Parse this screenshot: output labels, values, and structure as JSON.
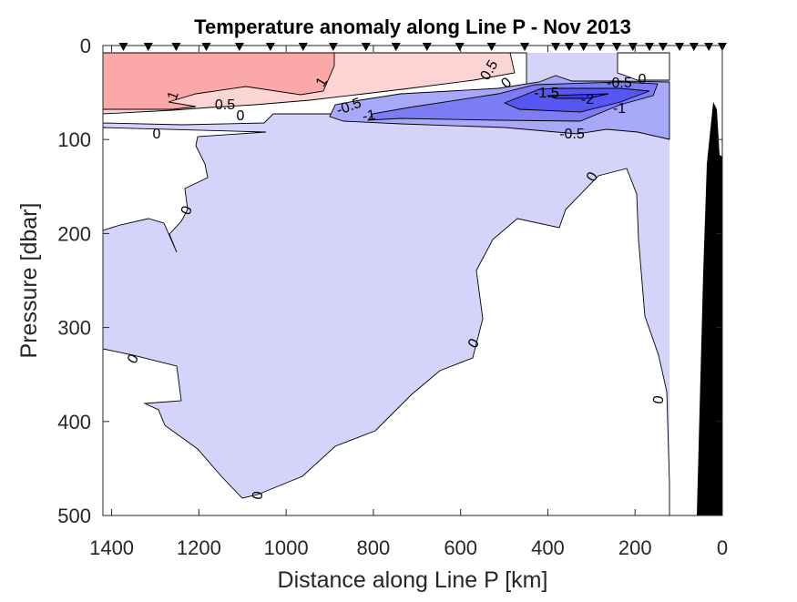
{
  "chart_data": {
    "type": "contour",
    "title": "Temperature anomaly along Line P - Nov 2013",
    "xlabel": "Distance along Line P [km]",
    "ylabel": "Pressure [dbar]",
    "xlim": [
      1420,
      0
    ],
    "ylim": [
      0,
      500
    ],
    "x_reversed": true,
    "y_reversed": true,
    "xticks": [
      "1400",
      "1200",
      "1000",
      "800",
      "600",
      "400",
      "200",
      "0"
    ],
    "xtick_values": [
      1400,
      1200,
      1000,
      800,
      600,
      400,
      200,
      0
    ],
    "yticks": [
      "0",
      "100",
      "200",
      "300",
      "400",
      "500"
    ],
    "ytick_values": [
      0,
      100,
      200,
      300,
      400,
      500
    ],
    "contour_levels": [
      -2,
      -1.5,
      -1,
      -0.5,
      0,
      0.5,
      1
    ],
    "level_colors": {
      "gt_1": "#fba8a8",
      "0.5_to_1": "#fdd4d4",
      "0_to_0.5": "#ffffff",
      "-0.5_to_0": "#d4d4fa",
      "-1_to_-0.5": "#a8a8f8",
      "-1.5_to_-1": "#7c7cf4",
      "-2_to_-1.5": "#5656f2",
      "lt_-2": "#3c3cf0"
    },
    "bathymetry_color": "#000000",
    "station_km": [
      1373,
      1316,
      1252,
      1183,
      1107,
      1036,
      961,
      892,
      817,
      748,
      677,
      602,
      529,
      453,
      382,
      351,
      318,
      280,
      242,
      205,
      167,
      136,
      98,
      65,
      31,
      0
    ],
    "contour_labels": [
      "1",
      "0.5",
      "0",
      "1",
      "0",
      "0.5",
      "0",
      "-0.5",
      "-1",
      "-1.5",
      "-2",
      "-0.5",
      "0",
      "-1",
      "-0.5",
      "0",
      "0",
      "0",
      "0",
      "0",
      "0"
    ]
  }
}
